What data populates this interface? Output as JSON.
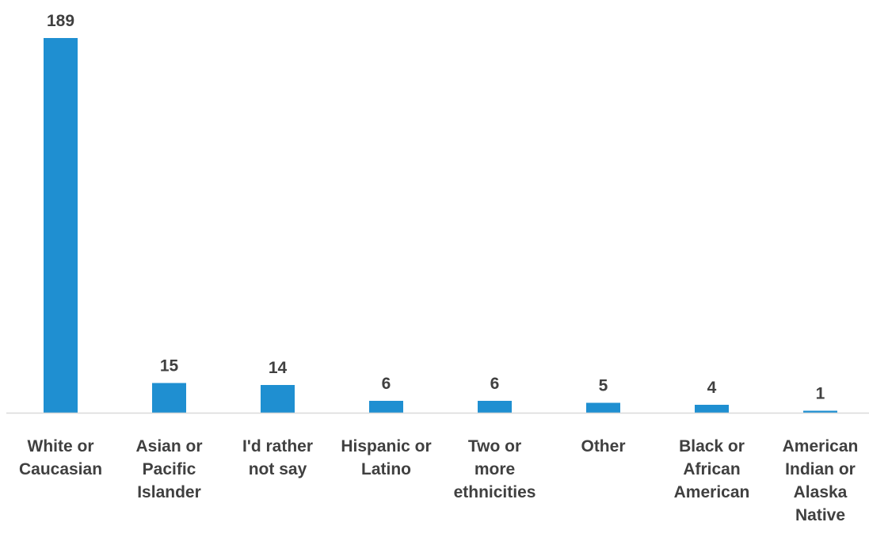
{
  "chart_data": {
    "type": "bar",
    "title": "",
    "xlabel": "",
    "ylabel": "",
    "categories": [
      [
        "White or",
        "Caucasian"
      ],
      [
        "Asian or",
        "Pacific",
        "Islander"
      ],
      [
        "I'd rather",
        "not say"
      ],
      [
        "Hispanic or",
        "Latino"
      ],
      [
        "Two or",
        "more",
        "ethnicities"
      ],
      [
        "Other"
      ],
      [
        "Black or",
        "African",
        "American"
      ],
      [
        "American",
        "Indian or",
        "Alaska",
        "Native"
      ]
    ],
    "values": [
      189,
      15,
      14,
      6,
      6,
      5,
      4,
      1
    ],
    "ylim": [
      0,
      189
    ],
    "grid": false,
    "legend": "none",
    "colors": {
      "bar": "#1f8fd1",
      "axis": "#d9d9d9",
      "text": "#404040"
    }
  }
}
